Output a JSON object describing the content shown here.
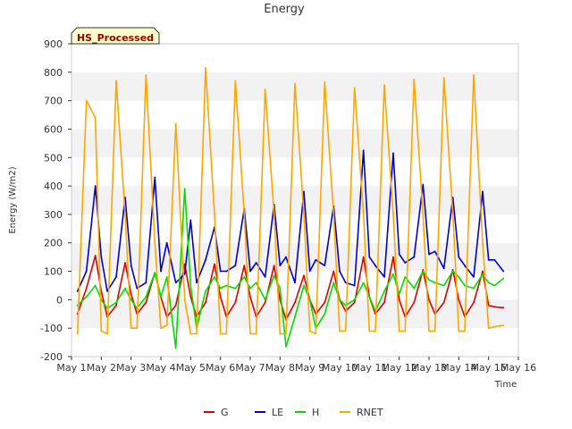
{
  "chart_data": {
    "type": "line",
    "title": "Energy",
    "badge": "HS_Processed",
    "xlabel": "Time",
    "ylabel": "Energy (W/m2)",
    "xlim": [
      1,
      16
    ],
    "ylim": [
      -200,
      900
    ],
    "x_ticks": [
      "May 1",
      "May 2",
      "May 3",
      "May 4",
      "May 5",
      "May 6",
      "May 7",
      "May 8",
      "May 9",
      "May 10",
      "May 11",
      "May 12",
      "May 13",
      "May 14",
      "May 15",
      "May 16"
    ],
    "y_ticks": [
      -200,
      -100,
      0,
      100,
      200,
      300,
      400,
      500,
      600,
      700,
      800,
      900
    ],
    "grid": "horizontal bands",
    "legend_position": "bottom",
    "series": [
      {
        "name": "G",
        "color": "#dd0000",
        "x": [
          1.2,
          1.5,
          1.8,
          2.0,
          2.2,
          2.5,
          2.8,
          3.0,
          3.2,
          3.5,
          3.8,
          4.0,
          4.2,
          4.5,
          4.8,
          5.0,
          5.2,
          5.5,
          5.8,
          6.0,
          6.2,
          6.5,
          6.8,
          7.0,
          7.2,
          7.5,
          7.8,
          8.0,
          8.2,
          8.5,
          8.8,
          9.0,
          9.2,
          9.5,
          9.8,
          10.0,
          10.2,
          10.5,
          10.8,
          11.0,
          11.2,
          11.5,
          11.8,
          12.0,
          12.2,
          12.5,
          12.8,
          13.0,
          13.2,
          13.5,
          13.8,
          14.0,
          14.2,
          14.5,
          14.8,
          15.0,
          15.2,
          15.5
        ],
        "y": [
          -50,
          40,
          155,
          30,
          -60,
          -20,
          130,
          20,
          -50,
          -10,
          95,
          10,
          -60,
          -20,
          125,
          10,
          -60,
          -10,
          125,
          10,
          -60,
          -10,
          120,
          10,
          -60,
          -10,
          120,
          0,
          -70,
          -10,
          85,
          0,
          -50,
          -10,
          100,
          0,
          -40,
          -10,
          150,
          10,
          -50,
          -10,
          150,
          0,
          -60,
          -10,
          105,
          0,
          -50,
          -10,
          105,
          0,
          -60,
          -10,
          100,
          -20,
          -25,
          -28
        ]
      },
      {
        "name": "LE",
        "color": "#0000cc",
        "x": [
          1.2,
          1.5,
          1.8,
          2.0,
          2.2,
          2.5,
          2.8,
          3.0,
          3.2,
          3.5,
          3.8,
          4.0,
          4.2,
          4.5,
          4.8,
          5.0,
          5.2,
          5.5,
          5.8,
          6.0,
          6.2,
          6.5,
          6.8,
          7.0,
          7.2,
          7.5,
          7.8,
          8.0,
          8.2,
          8.5,
          8.8,
          9.0,
          9.2,
          9.5,
          9.8,
          10.0,
          10.2,
          10.5,
          10.8,
          11.0,
          11.2,
          11.5,
          11.8,
          12.0,
          12.2,
          12.5,
          12.8,
          13.0,
          13.2,
          13.5,
          13.8,
          14.0,
          14.2,
          14.5,
          14.8,
          15.0,
          15.2,
          15.5
        ],
        "y": [
          30,
          100,
          400,
          150,
          30,
          80,
          360,
          120,
          40,
          60,
          430,
          100,
          200,
          60,
          90,
          280,
          60,
          140,
          255,
          100,
          100,
          120,
          320,
          100,
          130,
          80,
          335,
          120,
          150,
          60,
          380,
          100,
          140,
          120,
          330,
          100,
          60,
          50,
          525,
          150,
          120,
          80,
          515,
          160,
          130,
          150,
          405,
          160,
          170,
          110,
          360,
          150,
          120,
          80,
          380,
          140,
          140,
          100
        ]
      },
      {
        "name": "H",
        "color": "#00dd00",
        "x": [
          1.2,
          1.5,
          1.8,
          2.0,
          2.2,
          2.5,
          2.8,
          3.0,
          3.2,
          3.5,
          3.8,
          4.0,
          4.2,
          4.5,
          4.8,
          5.0,
          5.2,
          5.5,
          5.8,
          6.0,
          6.2,
          6.5,
          6.8,
          7.0,
          7.2,
          7.5,
          7.8,
          8.0,
          8.2,
          8.5,
          8.8,
          9.0,
          9.2,
          9.5,
          9.8,
          10.0,
          10.2,
          10.5,
          10.8,
          11.0,
          11.2,
          11.5,
          11.8,
          12.0,
          12.2,
          12.5,
          12.8,
          13.0,
          13.2,
          13.5,
          13.8,
          14.0,
          14.2,
          14.5,
          14.8,
          15.0,
          15.2,
          15.5
        ],
        "y": [
          -20,
          10,
          50,
          0,
          -30,
          -10,
          40,
          0,
          -30,
          10,
          95,
          10,
          80,
          -170,
          390,
          50,
          -100,
          30,
          80,
          40,
          50,
          40,
          80,
          40,
          60,
          0,
          85,
          40,
          -165,
          -60,
          50,
          0,
          -100,
          -50,
          60,
          0,
          -20,
          0,
          60,
          10,
          -40,
          30,
          90,
          20,
          80,
          40,
          100,
          70,
          60,
          50,
          100,
          80,
          50,
          40,
          90,
          60,
          50,
          75
        ]
      },
      {
        "name": "RNET",
        "color": "#ffa500",
        "x": [
          1.2,
          1.5,
          1.8,
          2.0,
          2.2,
          2.5,
          2.8,
          3.0,
          3.2,
          3.5,
          3.8,
          4.0,
          4.2,
          4.5,
          4.8,
          5.0,
          5.2,
          5.5,
          5.8,
          6.0,
          6.2,
          6.5,
          6.8,
          7.0,
          7.2,
          7.5,
          7.8,
          8.0,
          8.2,
          8.5,
          8.8,
          9.0,
          9.2,
          9.5,
          9.8,
          10.0,
          10.2,
          10.5,
          10.8,
          11.0,
          11.2,
          11.5,
          11.8,
          12.0,
          12.2,
          12.5,
          12.8,
          13.0,
          13.2,
          13.5,
          13.8,
          14.0,
          14.2,
          14.5,
          14.8,
          15.0,
          15.2,
          15.5
        ],
        "y": [
          -120,
          700,
          640,
          -110,
          -120,
          770,
          300,
          -100,
          -100,
          790,
          200,
          -100,
          -90,
          620,
          0,
          -120,
          -120,
          815,
          300,
          -120,
          -120,
          770,
          300,
          -120,
          -120,
          740,
          300,
          -120,
          -120,
          760,
          300,
          -110,
          -120,
          765,
          300,
          -110,
          -110,
          745,
          300,
          -110,
          -110,
          755,
          300,
          -110,
          -110,
          775,
          300,
          -110,
          -110,
          780,
          300,
          -110,
          -110,
          790,
          200,
          -100,
          -95,
          -90
        ]
      }
    ]
  }
}
